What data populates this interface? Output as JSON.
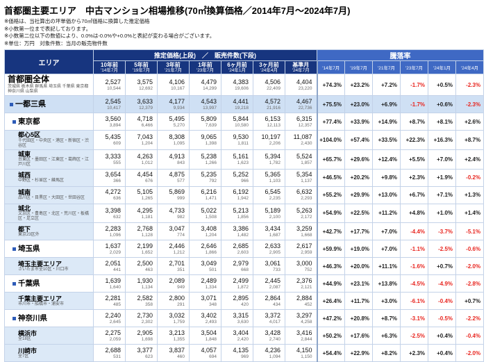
{
  "title": "首都圏主要エリア　中古マンション相場推移(70㎡換算価格／2014年7月～2024年7月)",
  "notes": [
    "※価格は、当社算出の坪単価から70㎡価格に換算した推定価格",
    "※小数第一位まで表記しております。",
    "※小数第二位以下の数値により、0.0%は-0.0%や+0.0%と表記が変わる場合がございます。",
    "※単位：万円　対象件数：当月の販売物件数"
  ],
  "table": {
    "area_header": "エリア",
    "price_header": "推定価格(上段)　／　販売件数(下段)",
    "rate_header": "騰落率",
    "price_cols": [
      {
        "label": "10年前",
        "date": "'14年7月"
      },
      {
        "label": "5年前",
        "date": "'19年7月"
      },
      {
        "label": "3年前",
        "date": "'21年7月"
      },
      {
        "label": "1年前",
        "date": "'23年7月"
      },
      {
        "label": "6ヶ月前",
        "date": "'24年1月"
      },
      {
        "label": "3ヶ月前",
        "date": "'24年4月"
      },
      {
        "label": "基準月",
        "date": "'24年7月"
      }
    ],
    "rate_cols": [
      "'14年7月",
      "'19年7月",
      "'21年7月",
      "'23年7月",
      "'24年1月",
      "'24年4月"
    ],
    "rows": [
      {
        "name": "首都圏全体",
        "note": "茨城県 栃木県 群馬県 埼玉県 千葉県 東京都 神奈川県 山梨県",
        "level": "top",
        "prices": [
          "2,527",
          "3,575",
          "4,106",
          "4,479",
          "4,383",
          "4,506",
          "4,404"
        ],
        "counts": [
          "10,544",
          "12,692",
          "10,167",
          "14,299",
          "19,606",
          "22,409",
          "23,220"
        ],
        "rates": [
          "+74.3%",
          "+23.2%",
          "+7.2%",
          "-1.7%",
          "+0.5%",
          "-2.3%"
        ]
      },
      {
        "name": "一都三県",
        "note": "",
        "level": "band",
        "prices": [
          "2,545",
          "3,633",
          "4,177",
          "4,543",
          "4,441",
          "4,572",
          "4,467"
        ],
        "counts": [
          "10,417",
          "12,379",
          "9,934",
          "13,997",
          "19,218",
          "21,916",
          "22,736"
        ],
        "rates": [
          "+75.5%",
          "+23.0%",
          "+6.9%",
          "-1.7%",
          "+0.6%",
          "-2.3%"
        ]
      },
      {
        "name": "東京都",
        "note": "",
        "level": "pref",
        "prices": [
          "3,560",
          "4,718",
          "5,495",
          "5,809",
          "5,844",
          "6,153",
          "6,315"
        ],
        "counts": [
          "3,894",
          "6,466",
          "5,270",
          "7,639",
          "10,580",
          "12,113",
          "12,357"
        ],
        "rates": [
          "+77.4%",
          "+33.9%",
          "+14.9%",
          "+8.7%",
          "+8.1%",
          "+2.6%"
        ]
      },
      {
        "name": "都心5区",
        "note": "千代田区・中央区・港区・新宿区・渋谷区",
        "level": "sub",
        "prices": [
          "5,435",
          "7,043",
          "8,308",
          "9,065",
          "9,530",
          "10,197",
          "11,087"
        ],
        "counts": [
          "609",
          "1,204",
          "1,095",
          "1,398",
          "1,811",
          "2,206",
          "2,430"
        ],
        "rates": [
          "+104.0%",
          "+57.4%",
          "+33.5%",
          "+22.3%",
          "+16.3%",
          "+8.7%"
        ]
      },
      {
        "name": "城東",
        "note": "台東区・墨田区・江東区・葛飾区・江戸川区",
        "level": "sub",
        "prices": [
          "3,333",
          "4,263",
          "4,913",
          "5,238",
          "5,161",
          "5,394",
          "5,524"
        ],
        "counts": [
          "555",
          "1,012",
          "843",
          "1,266",
          "1,623",
          "1,782",
          "1,857"
        ],
        "rates": [
          "+65.7%",
          "+29.6%",
          "+12.4%",
          "+5.5%",
          "+7.0%",
          "+2.4%"
        ]
      },
      {
        "name": "城西",
        "note": "中野区・杉並区・練馬区",
        "level": "sub",
        "prices": [
          "3,654",
          "4,454",
          "4,875",
          "5,235",
          "5,252",
          "5,365",
          "5,354"
        ],
        "counts": [
          "366",
          "676",
          "577",
          "792",
          "966",
          "1,103",
          "1,137"
        ],
        "rates": [
          "+46.5%",
          "+20.2%",
          "+9.8%",
          "+2.3%",
          "+1.9%",
          "-0.2%"
        ]
      },
      {
        "name": "城南",
        "note": "品川区・目黒区・大田区・世田谷区",
        "level": "sub",
        "prices": [
          "4,272",
          "5,105",
          "5,869",
          "6,216",
          "6,192",
          "6,545",
          "6,632"
        ],
        "counts": [
          "636",
          "1,265",
          "999",
          "1,471",
          "1,942",
          "2,235",
          "2,293"
        ],
        "rates": [
          "+55.2%",
          "+29.9%",
          "+13.0%",
          "+6.7%",
          "+7.1%",
          "+1.3%"
        ]
      },
      {
        "name": "城北",
        "note": "文京区・豊島区・北区・荒川区・板橋区・足立区",
        "level": "sub",
        "prices": [
          "3,398",
          "4,295",
          "4,733",
          "5,022",
          "5,213",
          "5,189",
          "5,263"
        ],
        "counts": [
          "632",
          "1,181",
          "982",
          "1,508",
          "1,856",
          "2,100",
          "2,172"
        ],
        "rates": [
          "+54.9%",
          "+22.5%",
          "+11.2%",
          "+4.8%",
          "+1.0%",
          "+1.4%"
        ]
      },
      {
        "name": "都下",
        "note": "東京23区外",
        "level": "sub",
        "prices": [
          "2,283",
          "2,768",
          "3,047",
          "3,408",
          "3,386",
          "3,434",
          "3,259"
        ],
        "counts": [
          "1,096",
          "1,128",
          "774",
          "1,204",
          "1,482",
          "1,687",
          "1,668"
        ],
        "rates": [
          "+42.7%",
          "+17.7%",
          "+7.0%",
          "-4.4%",
          "-3.7%",
          "-5.1%"
        ]
      },
      {
        "name": "埼玉県",
        "note": "",
        "level": "pref",
        "prices": [
          "1,637",
          "2,199",
          "2,446",
          "2,646",
          "2,685",
          "2,633",
          "2,617"
        ],
        "counts": [
          "2,029",
          "1,652",
          "1,212",
          "1,866",
          "2,603",
          "2,905",
          "2,959"
        ],
        "rates": [
          "+59.9%",
          "+19.0%",
          "+7.0%",
          "-1.1%",
          "-2.5%",
          "-0.6%"
        ]
      },
      {
        "name": "埼玉主要エリア",
        "note": "さいたま市全10区・川口市",
        "level": "sub",
        "prices": [
          "2,051",
          "2,500",
          "2,701",
          "3,049",
          "2,979",
          "3,061",
          "3,000"
        ],
        "counts": [
          "441",
          "463",
          "351",
          "501",
          "668",
          "733",
          "752"
        ],
        "rates": [
          "+46.3%",
          "+20.0%",
          "+11.1%",
          "-1.6%",
          "+0.7%",
          "-2.0%"
        ]
      },
      {
        "name": "千葉県",
        "note": "",
        "level": "pref",
        "prices": [
          "1,639",
          "1,930",
          "2,089",
          "2,489",
          "2,499",
          "2,445",
          "2,376"
        ],
        "counts": [
          "1,640",
          "1,134",
          "949",
          "1,334",
          "1,872",
          "2,087",
          "2,121"
        ],
        "rates": [
          "+44.9%",
          "+23.1%",
          "+13.8%",
          "-4.5%",
          "-4.9%",
          "-2.8%"
        ]
      },
      {
        "name": "千葉主要エリア",
        "note": "市川市・船橋市・浦安市",
        "level": "sub",
        "prices": [
          "2,281",
          "2,582",
          "2,800",
          "3,071",
          "2,895",
          "2,864",
          "2,884"
        ],
        "counts": [
          "485",
          "358",
          "291",
          "348",
          "420",
          "434",
          "452"
        ],
        "rates": [
          "+26.4%",
          "+11.7%",
          "+3.0%",
          "-6.1%",
          "-0.4%",
          "+0.7%"
        ]
      },
      {
        "name": "神奈川県",
        "note": "",
        "level": "pref",
        "prices": [
          "2,240",
          "2,730",
          "3,032",
          "3,402",
          "3,315",
          "3,372",
          "3,297"
        ],
        "counts": [
          "2,645",
          "2,302",
          "1,759",
          "2,493",
          "3,630",
          "4,017",
          "4,258"
        ],
        "rates": [
          "+47.2%",
          "+20.8%",
          "+8.7%",
          "-3.1%",
          "-0.5%",
          "-2.2%"
        ]
      },
      {
        "name": "横浜市",
        "note": "全18区",
        "level": "sub",
        "prices": [
          "2,275",
          "2,905",
          "3,213",
          "3,504",
          "3,404",
          "3,428",
          "3,416"
        ],
        "counts": [
          "2,059",
          "1,698",
          "1,355",
          "1,848",
          "2,420",
          "2,740",
          "2,844"
        ],
        "rates": [
          "+50.2%",
          "+17.6%",
          "+6.3%",
          "-2.5%",
          "+0.4%",
          "-0.4%"
        ]
      },
      {
        "name": "川崎市",
        "note": "全7区",
        "level": "sub",
        "prices": [
          "2,688",
          "3,377",
          "3,837",
          "4,057",
          "4,135",
          "4,236",
          "4,150"
        ],
        "counts": [
          "531",
          "623",
          "460",
          "694",
          "969",
          "1,094",
          "1,150"
        ],
        "rates": [
          "+54.4%",
          "+22.9%",
          "+8.2%",
          "+2.3%",
          "+0.4%",
          "-2.0%"
        ]
      }
    ]
  }
}
